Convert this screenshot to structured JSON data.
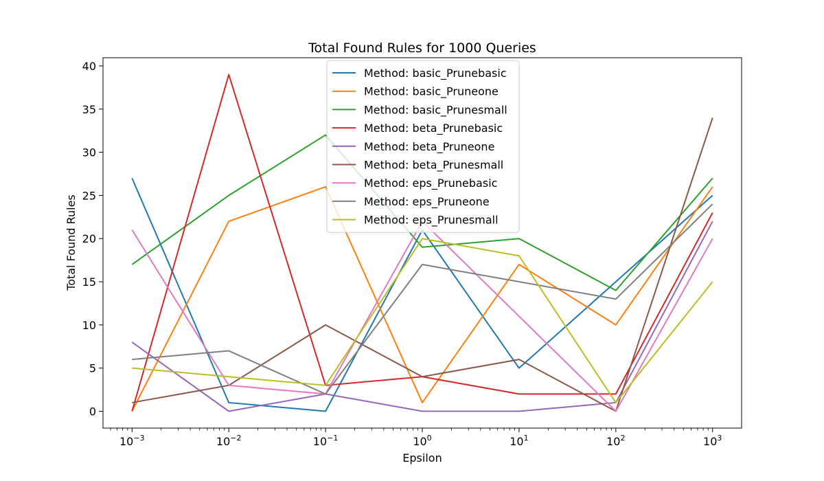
{
  "chart_data": {
    "type": "line",
    "title": "Total Found Rules for 1000 Queries",
    "xlabel": "Epsilon",
    "ylabel": "Total Found Rules",
    "xscale": "log",
    "x": [
      0.001,
      0.01,
      0.1,
      1,
      10,
      100,
      1000
    ],
    "xtick_labels": [
      {
        "base": "10",
        "exp": "−3"
      },
      {
        "base": "10",
        "exp": "−2"
      },
      {
        "base": "10",
        "exp": "−1"
      },
      {
        "base": "10",
        "exp": "0"
      },
      {
        "base": "10",
        "exp": "1"
      },
      {
        "base": "10",
        "exp": "2"
      },
      {
        "base": "10",
        "exp": "3"
      }
    ],
    "ylim": [
      -1.95,
      40.95
    ],
    "yticks": [
      0,
      5,
      10,
      15,
      20,
      25,
      30,
      35,
      40
    ],
    "grid": false,
    "legend_position": "upper-center",
    "series": [
      {
        "name": "Method: basic_Prunebasic",
        "color": "#1f77b4",
        "values": [
          27,
          1,
          0,
          21,
          5,
          15,
          25
        ]
      },
      {
        "name": "Method: basic_Pruneone",
        "color": "#ff7f0e",
        "values": [
          0,
          22,
          26,
          1,
          17,
          10,
          26
        ]
      },
      {
        "name": "Method: basic_Prunesmall",
        "color": "#2ca02c",
        "values": [
          17,
          25,
          32,
          19,
          20,
          14,
          27
        ]
      },
      {
        "name": "Method: beta_Prunebasic",
        "color": "#d62728",
        "values": [
          0,
          39,
          3,
          4,
          2,
          2,
          23
        ]
      },
      {
        "name": "Method: beta_Pruneone",
        "color": "#9467bd",
        "values": [
          8,
          0,
          2,
          0,
          0,
          1,
          22
        ]
      },
      {
        "name": "Method: beta_Prunesmall",
        "color": "#8c564b",
        "values": [
          1,
          3,
          10,
          4,
          6,
          0,
          34
        ]
      },
      {
        "name": "Method: eps_Prunebasic",
        "color": "#e377c2",
        "values": [
          21,
          3,
          2,
          22,
          11,
          0,
          20
        ]
      },
      {
        "name": "Method: eps_Pruneone",
        "color": "#7f7f7f",
        "values": [
          6,
          7,
          2,
          17,
          15,
          13,
          24
        ]
      },
      {
        "name": "Method: eps_Prunesmall",
        "color": "#bcbd22",
        "values": [
          5,
          4,
          3,
          20,
          18,
          1,
          15
        ]
      }
    ]
  }
}
